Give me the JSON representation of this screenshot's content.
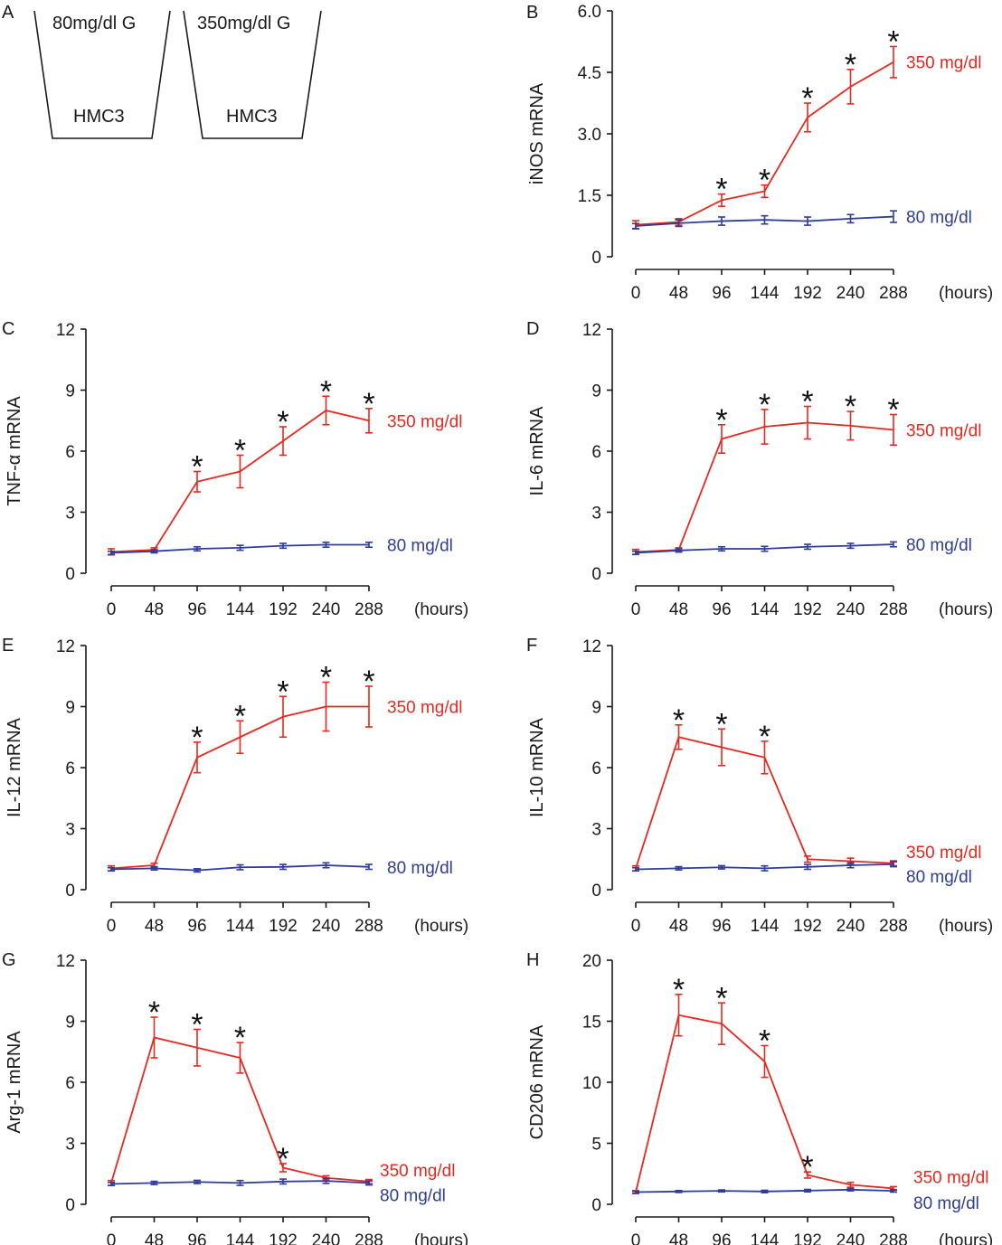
{
  "schematic": {
    "letter": "A",
    "wells": [
      {
        "top_label": "80mg/dl G",
        "bottom_label": "HMC3"
      },
      {
        "top_label": "350mg/dl G",
        "bottom_label": "HMC3"
      }
    ]
  },
  "colors": {
    "high": "#e8281e",
    "low": "#2e3c9a",
    "axis": "#1a1a1a"
  },
  "x_unit": "(hours)",
  "chart_data": [
    {
      "letter": "B",
      "type": "line",
      "ylabel": "iNOS mRNA",
      "x": [
        0,
        48,
        96,
        144,
        192,
        240,
        288
      ],
      "yticks": [
        "0",
        "1.5",
        "3.0",
        "4.5",
        "6.0"
      ],
      "ylim": [
        0,
        6
      ],
      "series": [
        {
          "name": "350 mg/dl",
          "values": [
            0.78,
            0.85,
            1.38,
            1.6,
            3.4,
            4.15,
            4.75
          ],
          "err": [
            0.1,
            0.08,
            0.15,
            0.15,
            0.35,
            0.42,
            0.38
          ],
          "stars": [
            false,
            false,
            true,
            true,
            true,
            true,
            true
          ]
        },
        {
          "name": "80 mg/dl",
          "values": [
            0.75,
            0.82,
            0.87,
            0.9,
            0.87,
            0.93,
            0.98
          ],
          "err": [
            0.06,
            0.08,
            0.1,
            0.1,
            0.1,
            0.1,
            0.14
          ]
        }
      ]
    },
    {
      "letter": "C",
      "type": "line",
      "ylabel": "TNF-α mRNA",
      "x": [
        0,
        48,
        96,
        144,
        192,
        240,
        288
      ],
      "yticks": [
        "0",
        "3",
        "6",
        "9",
        "12"
      ],
      "ylim": [
        0,
        12
      ],
      "series": [
        {
          "name": "350 mg/dl",
          "values": [
            1.05,
            1.15,
            4.5,
            5.0,
            6.5,
            8.0,
            7.5
          ],
          "err": [
            0.15,
            0.1,
            0.5,
            0.8,
            0.7,
            0.7,
            0.6
          ],
          "stars": [
            false,
            false,
            true,
            true,
            true,
            true,
            true
          ]
        },
        {
          "name": "80 mg/dl",
          "values": [
            1.0,
            1.08,
            1.2,
            1.25,
            1.35,
            1.4,
            1.4
          ],
          "err": [
            0.08,
            0.08,
            0.1,
            0.12,
            0.12,
            0.12,
            0.12
          ]
        }
      ]
    },
    {
      "letter": "D",
      "type": "line",
      "ylabel": "IL-6 mRNA",
      "x": [
        0,
        48,
        96,
        144,
        192,
        240,
        288
      ],
      "yticks": [
        "0",
        "3",
        "6",
        "9",
        "12"
      ],
      "ylim": [
        0,
        12
      ],
      "series": [
        {
          "name": "350 mg/dl",
          "values": [
            1.05,
            1.15,
            6.6,
            7.2,
            7.4,
            7.25,
            7.05
          ],
          "err": [
            0.12,
            0.1,
            0.7,
            0.85,
            0.8,
            0.7,
            0.75
          ],
          "stars": [
            false,
            false,
            true,
            true,
            true,
            true,
            true
          ]
        },
        {
          "name": "80 mg/dl",
          "values": [
            1.0,
            1.12,
            1.2,
            1.2,
            1.3,
            1.35,
            1.42
          ],
          "err": [
            0.08,
            0.08,
            0.1,
            0.12,
            0.12,
            0.12,
            0.12
          ]
        }
      ]
    },
    {
      "letter": "E",
      "type": "line",
      "ylabel": "IL-12 mRNA",
      "x": [
        0,
        48,
        96,
        144,
        192,
        240,
        288
      ],
      "yticks": [
        "0",
        "3",
        "6",
        "9",
        "12"
      ],
      "ylim": [
        0,
        12
      ],
      "series": [
        {
          "name": "350 mg/dl",
          "values": [
            1.05,
            1.2,
            6.5,
            7.5,
            8.5,
            9.0,
            9.0
          ],
          "err": [
            0.12,
            0.1,
            0.75,
            0.8,
            1.0,
            1.2,
            1.0
          ],
          "stars": [
            false,
            false,
            true,
            true,
            true,
            true,
            true
          ]
        },
        {
          "name": "80 mg/dl",
          "values": [
            1.0,
            1.05,
            0.95,
            1.1,
            1.12,
            1.2,
            1.12
          ],
          "err": [
            0.08,
            0.08,
            0.08,
            0.12,
            0.12,
            0.12,
            0.12
          ]
        }
      ]
    },
    {
      "letter": "F",
      "type": "line",
      "ylabel": "IL-10 mRNA",
      "x": [
        0,
        48,
        96,
        144,
        192,
        240,
        288
      ],
      "yticks": [
        "0",
        "3",
        "6",
        "9",
        "12"
      ],
      "ylim": [
        0,
        12
      ],
      "series": [
        {
          "name": "350 mg/dl",
          "values": [
            1.05,
            7.5,
            7.0,
            6.5,
            1.5,
            1.4,
            1.3
          ],
          "err": [
            0.12,
            0.6,
            0.9,
            0.8,
            0.15,
            0.15,
            0.12
          ],
          "stars": [
            false,
            true,
            true,
            true,
            false,
            false,
            false
          ]
        },
        {
          "name": "80 mg/dl",
          "values": [
            1.0,
            1.05,
            1.1,
            1.05,
            1.12,
            1.2,
            1.25
          ],
          "err": [
            0.08,
            0.08,
            0.08,
            0.12,
            0.12,
            0.12,
            0.12
          ]
        }
      ]
    },
    {
      "letter": "G",
      "type": "line",
      "ylabel": "Arg-1 mRNA",
      "x": [
        0,
        48,
        96,
        144,
        192,
        240,
        288
      ],
      "yticks": [
        "0",
        "3",
        "6",
        "9",
        "12"
      ],
      "ylim": [
        0,
        12
      ],
      "series": [
        {
          "name": "350 mg/dl",
          "values": [
            1.05,
            8.2,
            7.7,
            7.2,
            1.8,
            1.3,
            1.12
          ],
          "err": [
            0.12,
            1.0,
            0.9,
            0.75,
            0.2,
            0.1,
            0.1
          ],
          "stars": [
            false,
            true,
            true,
            true,
            true,
            false,
            false
          ]
        },
        {
          "name": "80 mg/dl",
          "values": [
            1.0,
            1.05,
            1.1,
            1.05,
            1.12,
            1.15,
            1.05
          ],
          "err": [
            0.08,
            0.08,
            0.08,
            0.12,
            0.12,
            0.12,
            0.1
          ]
        }
      ]
    },
    {
      "letter": "H",
      "type": "line",
      "ylabel": "CD206 mRNA",
      "x": [
        0,
        48,
        96,
        144,
        192,
        240,
        288
      ],
      "yticks": [
        "0",
        "5",
        "10",
        "15",
        "20"
      ],
      "ylim": [
        0,
        20
      ],
      "series": [
        {
          "name": "350 mg/dl",
          "values": [
            1.0,
            15.5,
            14.8,
            11.7,
            2.4,
            1.6,
            1.3
          ],
          "err": [
            0.12,
            1.7,
            1.7,
            1.3,
            0.25,
            0.2,
            0.15
          ],
          "stars": [
            false,
            true,
            true,
            true,
            true,
            false,
            false
          ]
        },
        {
          "name": "80 mg/dl",
          "values": [
            1.0,
            1.05,
            1.1,
            1.05,
            1.12,
            1.2,
            1.1
          ],
          "err": [
            0.08,
            0.08,
            0.08,
            0.1,
            0.1,
            0.1,
            0.1
          ]
        }
      ]
    }
  ]
}
